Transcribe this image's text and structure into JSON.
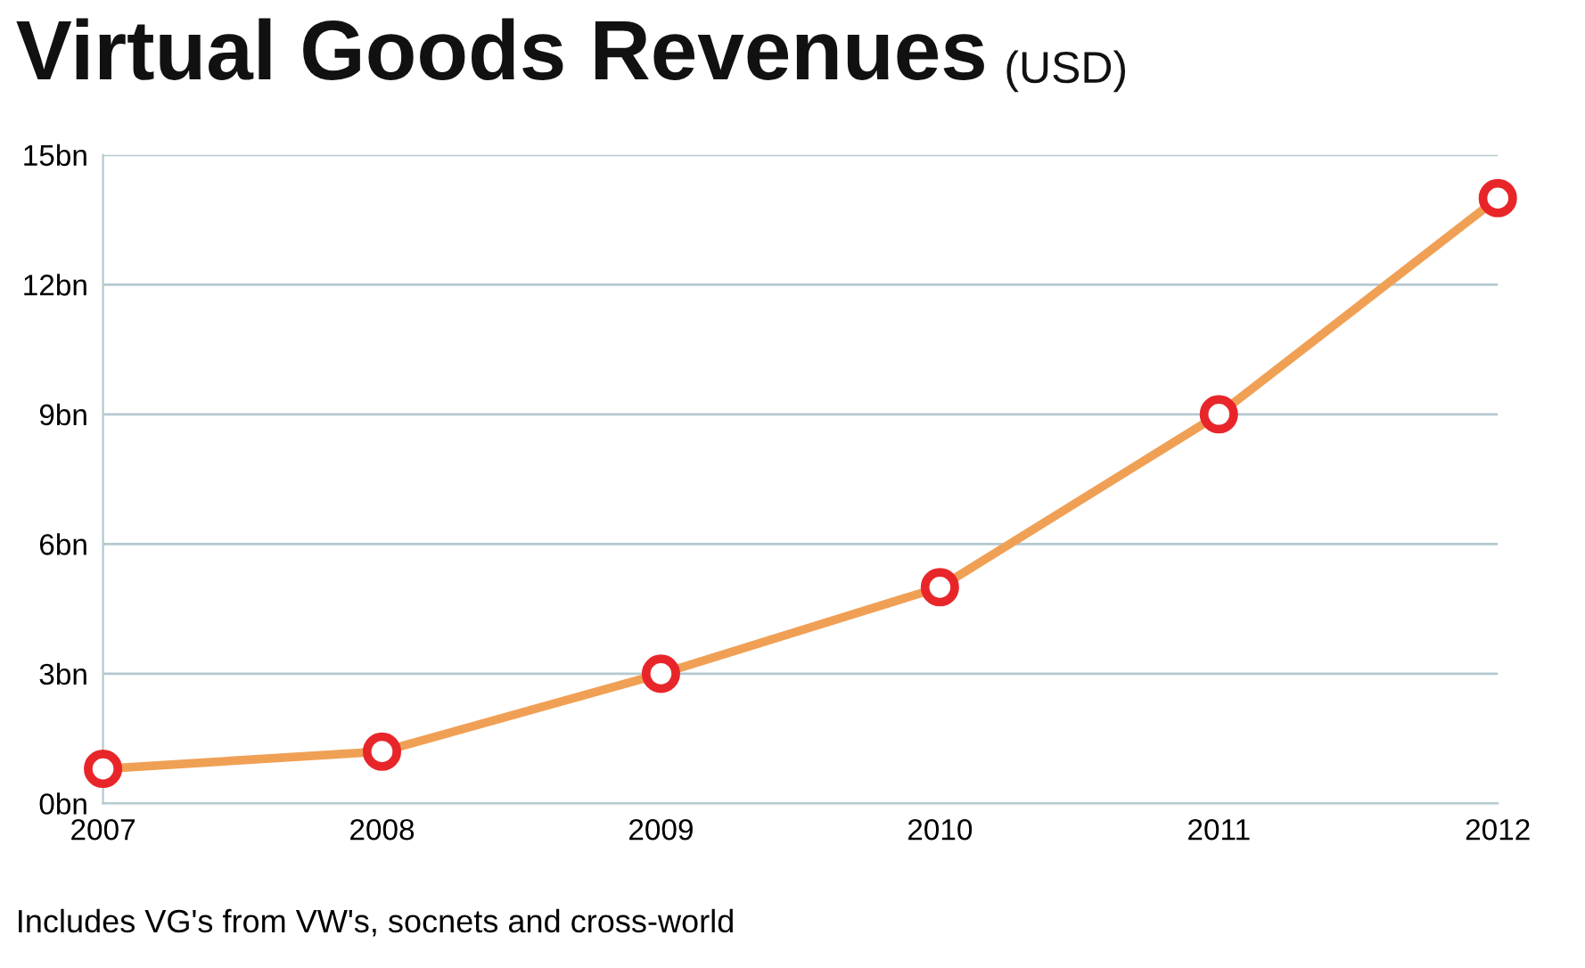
{
  "chart_data": {
    "type": "line",
    "title": "Virtual Goods Revenues",
    "subtitle": "(USD)",
    "x": [
      2007,
      2008,
      2009,
      2010,
      2011,
      2012
    ],
    "series": [
      {
        "color": "#f0a055",
        "values": [
          0.8,
          1.2,
          3,
          5,
          9,
          14
        ]
      }
    ],
    "xlim": [
      2007,
      2012
    ],
    "xticks": [
      2007,
      2008,
      2009,
      2010,
      2011,
      2012
    ],
    "ylim": [
      0,
      15
    ],
    "yticks": [
      {
        "value": 0,
        "label": "0bn"
      },
      {
        "value": 3,
        "label": "3bn"
      },
      {
        "value": 6,
        "label": "6bn"
      },
      {
        "value": 9,
        "label": "9bn"
      },
      {
        "value": 12,
        "label": "12bn"
      },
      {
        "value": 15,
        "label": "15bn"
      }
    ],
    "grid": "y",
    "marker": "circle",
    "line_style": "solid",
    "annotations": [
      "Includes VG's from VW's, socnets and cross-world"
    ]
  }
}
